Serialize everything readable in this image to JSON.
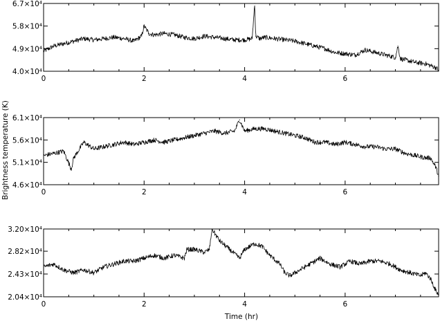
{
  "figure": {
    "ylabel": "Brightness temperature (K)",
    "xlabel": "Time (hr)"
  },
  "chart_data": [
    {
      "type": "line",
      "xlim": [
        0,
        7.86
      ],
      "ylim": [
        40000,
        67000
      ],
      "x_ticks": [
        0,
        2,
        4,
        6
      ],
      "x_tick_labels": [
        "0",
        "2",
        "4",
        "6"
      ],
      "y_ticks": [
        40000,
        49000,
        58000,
        67000
      ],
      "y_tick_labels": [
        "4.0×10⁴",
        "4.9×10⁴",
        "5.8×10⁴",
        "6.7×10⁴"
      ],
      "xlabel": "",
      "ylabel": "",
      "series": [
        {
          "x": [
            0,
            0.2,
            0.4,
            0.6,
            0.8,
            1.0,
            1.2,
            1.4,
            1.6,
            1.8,
            1.95,
            2.0,
            2.1,
            2.2,
            2.4,
            2.6,
            2.8,
            3.0,
            3.2,
            3.4,
            3.6,
            3.8,
            4.0,
            4.15,
            4.2,
            4.22,
            4.3,
            4.4,
            4.6,
            4.8,
            5.0,
            5.2,
            5.4,
            5.6,
            5.8,
            6.0,
            6.2,
            6.4,
            6.6,
            6.8,
            7.0,
            7.05,
            7.1,
            7.2,
            7.4,
            7.6,
            7.8,
            7.86
          ],
          "values": [
            48000,
            50000,
            51000,
            52000,
            53000,
            52500,
            53000,
            53500,
            53000,
            52000,
            54000,
            58000,
            55000,
            54500,
            55000,
            54500,
            53500,
            53000,
            54000,
            53500,
            53000,
            52500,
            52500,
            53000,
            67000,
            54000,
            53000,
            53500,
            53000,
            52500,
            52000,
            51000,
            50000,
            49000,
            47500,
            47000,
            46500,
            48500,
            47500,
            46500,
            45500,
            50000,
            45000,
            44500,
            43500,
            43000,
            41500,
            40500
          ]
        }
      ]
    },
    {
      "type": "line",
      "xlim": [
        0,
        7.86
      ],
      "ylim": [
        46000,
        61000
      ],
      "x_ticks": [
        0,
        2,
        4,
        6
      ],
      "x_tick_labels": [
        "0",
        "2",
        "4",
        "6"
      ],
      "y_ticks": [
        46000,
        51000,
        56000,
        61000
      ],
      "y_tick_labels": [
        "4.6×10⁴",
        "5.1×10⁴",
        "5.6×10⁴",
        "6.1×10⁴"
      ],
      "xlabel": "",
      "ylabel": "",
      "series": [
        {
          "x": [
            0,
            0.2,
            0.4,
            0.55,
            0.6,
            0.8,
            1.0,
            1.2,
            1.4,
            1.6,
            1.8,
            2.0,
            2.2,
            2.4,
            2.6,
            2.8,
            3.0,
            3.2,
            3.4,
            3.6,
            3.8,
            3.9,
            4.0,
            4.2,
            4.4,
            4.6,
            4.8,
            5.0,
            5.2,
            5.4,
            5.6,
            5.8,
            6.0,
            6.2,
            6.4,
            6.6,
            6.8,
            7.0,
            7.2,
            7.4,
            7.6,
            7.7,
            7.8,
            7.86
          ],
          "values": [
            52500,
            53000,
            53500,
            49500,
            52000,
            55500,
            54000,
            54500,
            55000,
            55500,
            55000,
            55500,
            56000,
            55500,
            56000,
            56500,
            57000,
            57500,
            58000,
            57500,
            58000,
            60500,
            58000,
            58500,
            58500,
            58000,
            57500,
            57000,
            56500,
            55500,
            55500,
            55000,
            55500,
            55000,
            54500,
            54500,
            54000,
            54000,
            53000,
            52500,
            52000,
            52000,
            50000,
            48000
          ]
        }
      ]
    },
    {
      "type": "line",
      "xlim": [
        0,
        7.86
      ],
      "ylim": [
        20400,
        32000
      ],
      "x_ticks": [
        0,
        2,
        4,
        6
      ],
      "x_tick_labels": [
        "0",
        "2",
        "4",
        "6"
      ],
      "y_ticks": [
        20400,
        24300,
        28200,
        32000
      ],
      "y_tick_labels": [
        "2.04×10⁴",
        "2.43×10⁴",
        "2.82×10⁴",
        "3.20×10⁴"
      ],
      "xlabel": "",
      "ylabel": "",
      "series": [
        {
          "x": [
            0,
            0.2,
            0.4,
            0.6,
            0.8,
            1.0,
            1.2,
            1.4,
            1.6,
            1.8,
            2.0,
            2.2,
            2.4,
            2.6,
            2.8,
            2.85,
            3.0,
            3.2,
            3.3,
            3.35,
            3.5,
            3.7,
            3.9,
            4.0,
            4.2,
            4.35,
            4.5,
            4.7,
            4.8,
            4.9,
            5.1,
            5.3,
            5.5,
            5.7,
            5.9,
            6.1,
            6.3,
            6.5,
            6.7,
            6.9,
            7.1,
            7.3,
            7.5,
            7.6,
            7.7,
            7.8,
            7.86
          ],
          "values": [
            25500,
            26000,
            25000,
            24500,
            25000,
            24500,
            25500,
            26000,
            26500,
            26500,
            27000,
            27500,
            27000,
            27500,
            27000,
            28500,
            28500,
            28000,
            28500,
            32000,
            30000,
            28500,
            27000,
            28500,
            29500,
            29000,
            27500,
            26000,
            24500,
            24000,
            25000,
            26000,
            27000,
            26000,
            25500,
            26500,
            26000,
            26500,
            26500,
            26000,
            25000,
            24500,
            24000,
            24500,
            23500,
            21500,
            20800
          ]
        }
      ]
    }
  ]
}
